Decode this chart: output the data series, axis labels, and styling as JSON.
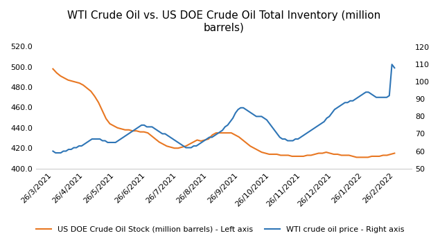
{
  "title": "WTI Crude Oil vs. US DOE Crude Oil Total Inventory (million\nbarrels)",
  "left_ylim": [
    400.0,
    528.0
  ],
  "left_yticks": [
    400.0,
    420.0,
    440.0,
    460.0,
    480.0,
    500.0,
    520.0
  ],
  "right_ylim": [
    50,
    125
  ],
  "right_yticks": [
    50,
    60,
    70,
    80,
    90,
    100,
    110,
    120
  ],
  "orange_color": "#E87722",
  "blue_color": "#2E75B6",
  "legend_orange": "US DOE Crude Oil Stock (million barrels) - Left axis",
  "legend_blue": "WTI crude oil price - Right axis",
  "title_fontsize": 11,
  "axis_fontsize": 8,
  "legend_fontsize": 8,
  "bg_color": "#FFFFFF",
  "inventory_y": [
    498,
    494,
    491,
    489,
    487,
    486,
    485,
    484,
    482,
    479,
    476,
    471,
    465,
    457,
    449,
    444,
    442,
    440,
    439,
    438,
    438,
    437,
    437,
    436,
    436,
    435,
    432,
    429,
    426,
    424,
    422,
    421,
    420,
    420,
    421,
    422,
    424,
    426,
    428,
    427,
    428,
    429,
    433,
    435,
    435,
    435,
    435,
    435,
    433,
    431,
    428,
    425,
    422,
    420,
    418,
    416,
    415,
    414,
    414,
    414,
    413,
    413,
    413,
    412,
    412,
    412,
    412,
    413,
    413,
    414,
    415,
    415,
    416,
    415,
    414,
    414,
    413,
    413,
    413,
    412,
    411,
    411,
    411,
    411,
    412,
    412,
    412,
    413,
    413,
    414,
    415
  ],
  "wti_y": [
    60,
    59,
    59,
    59,
    60,
    60,
    61,
    61,
    62,
    62,
    63,
    63,
    64,
    65,
    66,
    67,
    67,
    67,
    67,
    66,
    66,
    65,
    65,
    65,
    65,
    66,
    67,
    68,
    69,
    70,
    71,
    72,
    73,
    74,
    75,
    75,
    74,
    74,
    74,
    73,
    72,
    71,
    70,
    70,
    69,
    68,
    67,
    66,
    65,
    64,
    63,
    62,
    62,
    62,
    63,
    63,
    64,
    65,
    66,
    67,
    68,
    68,
    69,
    70,
    71,
    72,
    74,
    75,
    77,
    79,
    82,
    84,
    85,
    85,
    84,
    83,
    82,
    81,
    80,
    80,
    80,
    79,
    78,
    76,
    74,
    72,
    70,
    68,
    67,
    67,
    66,
    66,
    66,
    67,
    67,
    68,
    69,
    70,
    71,
    72,
    73,
    74,
    75,
    76,
    77,
    79,
    80,
    82,
    84,
    85,
    86,
    87,
    88,
    88,
    89,
    89,
    90,
    91,
    92,
    93,
    94,
    94,
    93,
    92,
    91,
    91,
    91,
    91,
    91,
    92,
    110,
    108
  ],
  "xtick_labels": [
    "26/3/2021",
    "26/4/2021",
    "26/5/2021",
    "26/6/2021",
    "26/7/2021",
    "26/8/2021",
    "26/9/2021",
    "26/10/2021",
    "26/11/2021",
    "26/12/2021",
    "26/1/2022",
    "26/2/2022"
  ]
}
